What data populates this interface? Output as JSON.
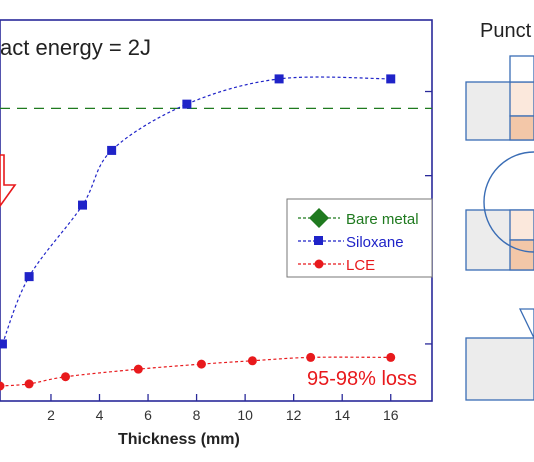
{
  "right_panel": {
    "title": "Punct"
  },
  "chart_data": {
    "type": "line",
    "title": "act energy = 2J",
    "xlabel": "Thickness (mm)",
    "ylabel": "",
    "xlim": [
      -0.1,
      17.7
    ],
    "x_ticks": [
      2,
      4,
      6,
      8,
      10,
      12,
      14,
      16
    ],
    "annotation": "95-98% loss",
    "legend": {
      "placement": "right"
    },
    "series": [
      {
        "name": "Bare metal",
        "color": "#1f7a1f",
        "style": "dashed",
        "marker": "diamond",
        "x": [
          -0.1,
          17.7
        ],
        "y": [
          6.6,
          6.6
        ]
      },
      {
        "name": "Siloxane",
        "color": "#1f23c8",
        "style": "dashed",
        "marker": "square",
        "x": [
          0.0,
          1.1,
          3.3,
          4.5,
          7.6,
          11.4,
          16.0
        ],
        "y": [
          1.0,
          2.6,
          4.3,
          5.6,
          6.7,
          7.3,
          7.3
        ]
      },
      {
        "name": "LCE",
        "color": "#e8191c",
        "style": "dashed",
        "marker": "circle",
        "x": [
          -0.1,
          1.1,
          2.6,
          5.6,
          8.2,
          10.3,
          12.7,
          16.0
        ],
        "y": [
          0.0,
          0.05,
          0.22,
          0.4,
          0.52,
          0.6,
          0.68,
          0.68
        ]
      }
    ]
  }
}
